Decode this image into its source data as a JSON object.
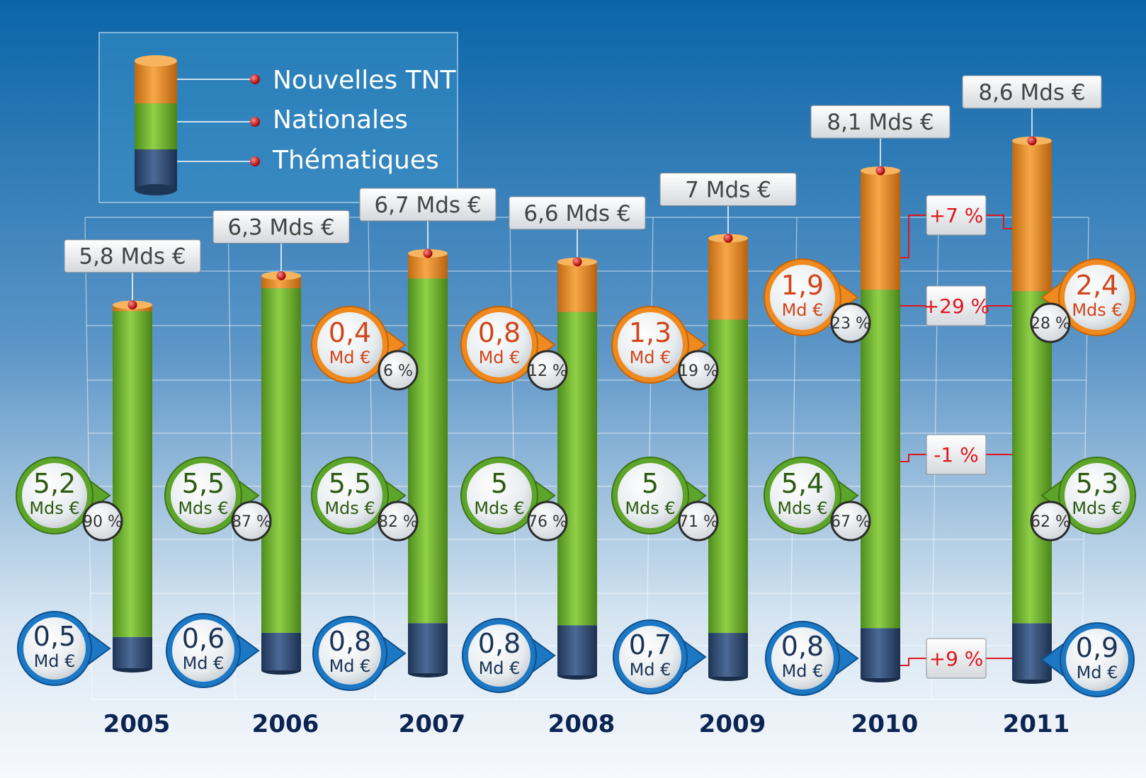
{
  "chart_data": {
    "type": "bar",
    "stacked": true,
    "categories": [
      "2005",
      "2006",
      "2007",
      "2008",
      "2009",
      "2010",
      "2011"
    ],
    "series": [
      {
        "name": "Thématiques",
        "color": "#34507a",
        "values": [
          0.5,
          0.6,
          0.8,
          0.8,
          0.7,
          0.8,
          0.9
        ],
        "labels": [
          "0,5",
          "0,6",
          "0,8",
          "0,8",
          "0,7",
          "0,8",
          "0,9"
        ],
        "units": [
          "Md €",
          "Md €",
          "Md €",
          "Md €",
          "Md €",
          "Md €",
          "Md €"
        ]
      },
      {
        "name": "Nationales",
        "color": "#7dc43b",
        "values": [
          5.2,
          5.5,
          5.5,
          5.0,
          5.0,
          5.4,
          5.3
        ],
        "labels": [
          "5,2",
          "5,5",
          "5,5",
          "5",
          "5",
          "5,4",
          "5,3"
        ],
        "units": [
          "Mds €",
          "Mds €",
          "Mds €",
          "Mds €",
          "Mds €",
          "Mds €",
          "Mds €"
        ],
        "shares": [
          "90 %",
          "87 %",
          "82 %",
          "76 %",
          "71 %",
          "67 %",
          "62 %"
        ]
      },
      {
        "name": "Nouvelles TNT",
        "color": "#f0962c",
        "values": [
          0.1,
          0.2,
          0.4,
          0.8,
          1.3,
          1.9,
          2.4
        ],
        "labels": [
          "",
          "",
          "0,4",
          "0,8",
          "1,3",
          "1,9",
          "2,4"
        ],
        "units": [
          "",
          "",
          "Md €",
          "Md €",
          "Md €",
          "Md €",
          "Mds €"
        ],
        "shares": [
          "",
          "",
          "6 %",
          "12 %",
          "19 %",
          "23 %",
          "28 %"
        ]
      }
    ],
    "totals": [
      5.8,
      6.3,
      6.7,
      6.6,
      7.0,
      8.1,
      8.6
    ],
    "total_labels": [
      "5,8 Mds €",
      "6,3 Mds €",
      "6,7 Mds €",
      "6,6 Mds €",
      "7 Mds €",
      "8,1 Mds €",
      "8,6 Mds €"
    ],
    "changes_2010_2011": [
      {
        "segment": "total",
        "label": "+7 %"
      },
      {
        "segment": "Nouvelles TNT",
        "label": "+29 %"
      },
      {
        "segment": "Nationales",
        "label": "-1 %"
      },
      {
        "segment": "Thématiques",
        "label": "+9 %"
      }
    ],
    "legend": {
      "position": "top-left",
      "items": [
        "Nouvelles TNT",
        "Nationales",
        "Thématiques"
      ]
    },
    "grid": true,
    "colors": {
      "bg_top": "#0a65a8",
      "bg_bottom": "#f3f7fb",
      "delta": "#e0161e",
      "year": "#0b2452",
      "green_text": "#2d5a10",
      "orange_text": "#d2451a",
      "blue_text": "#1b3356"
    }
  }
}
